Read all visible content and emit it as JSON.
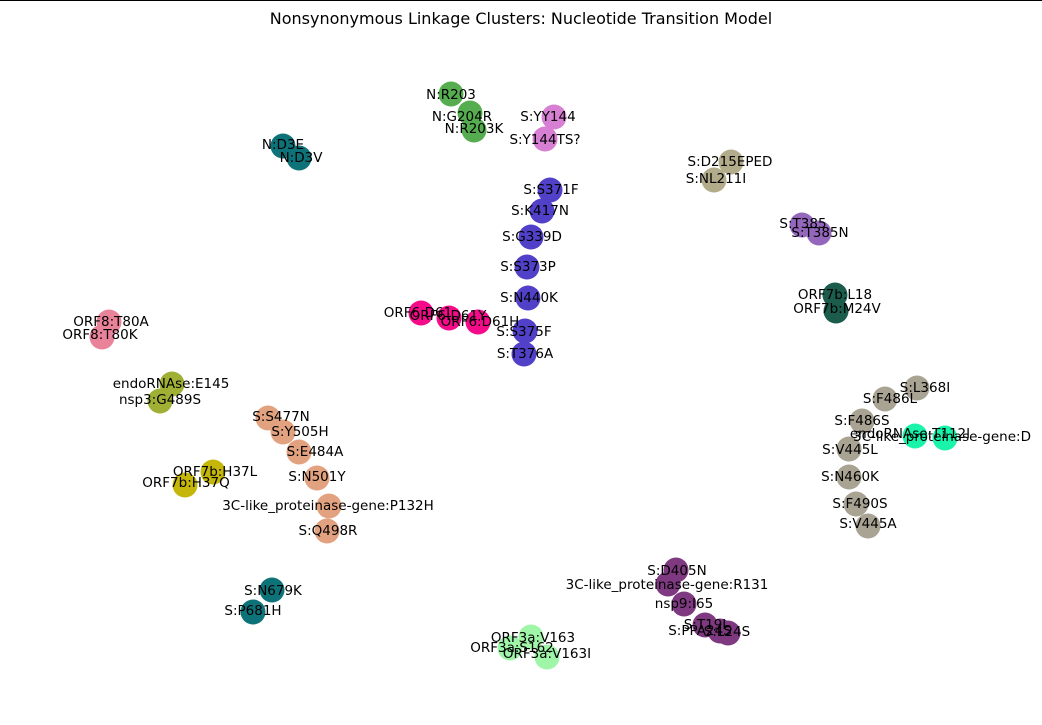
{
  "title": "Nonsynonymous Linkage Clusters: Nucleotide Transition Model",
  "clusters": [
    {
      "color": "#55ad4f",
      "nodes": [
        {
          "label": "N:R203"
        },
        {
          "label": "N:G204R"
        },
        {
          "label": "N:R203K"
        }
      ]
    },
    {
      "color": "#d67fd3",
      "nodes": [
        {
          "label": "S:YY144"
        },
        {
          "label": "S:Y144TS?"
        }
      ]
    },
    {
      "color": "#0e7379",
      "nodes": [
        {
          "label": "N:D3E"
        },
        {
          "label": "N:D3V"
        }
      ]
    },
    {
      "color": "#b3ac8b",
      "nodes": [
        {
          "label": "S:D215EPED"
        },
        {
          "label": "S:NL211I"
        }
      ]
    },
    {
      "color": "#5140c8",
      "nodes": [
        {
          "label": "S:S371F"
        },
        {
          "label": "S:K417N"
        },
        {
          "label": "S:G339D"
        },
        {
          "label": "S:S373P"
        },
        {
          "label": "S:N440K"
        },
        {
          "label": "S:S375F"
        },
        {
          "label": "S:T376A"
        }
      ]
    },
    {
      "color": "#9467bd",
      "nodes": [
        {
          "label": "S:T385"
        },
        {
          "label": "S:T385N"
        }
      ]
    },
    {
      "color": "#f50a8a",
      "nodes": [
        {
          "label": "ORF6:D61"
        },
        {
          "label": "ORF6:D61Y"
        },
        {
          "label": "ORF6:D61H"
        }
      ]
    },
    {
      "color": "#1b5c4d",
      "nodes": [
        {
          "label": "ORF7b:L18"
        },
        {
          "label": "ORF7b:M24V"
        }
      ]
    },
    {
      "color": "#e9839a",
      "nodes": [
        {
          "label": "ORF8:T80A"
        },
        {
          "label": "ORF8:T80K"
        }
      ]
    },
    {
      "color": "#9fb035",
      "nodes": [
        {
          "label": "endoRNAse:E145"
        },
        {
          "label": "nsp3:G489S"
        }
      ]
    },
    {
      "color": "#e3a27f",
      "nodes": [
        {
          "label": "S:S477N"
        },
        {
          "label": "S:Y505H"
        },
        {
          "label": "S:E484A"
        },
        {
          "label": "S:N501Y"
        },
        {
          "label": "3C-like_proteinase-gene:P132H"
        },
        {
          "label": "S:Q498R"
        }
      ]
    },
    {
      "color": "#c5b70a",
      "nodes": [
        {
          "label": "ORF7b:H37L"
        },
        {
          "label": "ORF7b:H37Q"
        }
      ]
    },
    {
      "color": "#a8a392",
      "nodes": [
        {
          "label": "S:L368I"
        },
        {
          "label": "S:F486L"
        },
        {
          "label": "S:F486S"
        },
        {
          "label": "S:V445L"
        },
        {
          "label": "S:N460K"
        },
        {
          "label": "S:F490S"
        },
        {
          "label": "S:V445A"
        }
      ]
    },
    {
      "color": "#1af4ab",
      "nodes": [
        {
          "label": "endoRNAse:T112I"
        },
        {
          "label": "3C-like_proteinase-gene:D"
        }
      ]
    },
    {
      "color": "#0e7379",
      "nodes": [
        {
          "label": "S:N679K"
        },
        {
          "label": "S:P681H"
        }
      ]
    },
    {
      "color": "#7f3981",
      "nodes": [
        {
          "label": "S:D405N"
        },
        {
          "label": "3C-like_proteinase-gene:R131"
        },
        {
          "label": "nsp9:I65"
        },
        {
          "label": "S:T19I"
        },
        {
          "label": "S:L24S"
        },
        {
          "label": "S:PPA24S"
        }
      ]
    },
    {
      "color": "#9ff5a8",
      "nodes": [
        {
          "label": "ORF3a:V163"
        },
        {
          "label": "ORF3a:S162"
        },
        {
          "label": "ORF3a:V163I"
        }
      ]
    }
  ]
}
